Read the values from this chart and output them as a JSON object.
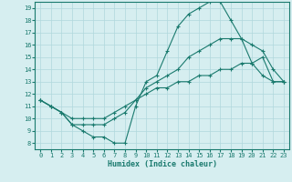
{
  "xlabel": "Humidex (Indice chaleur)",
  "background_color": "#d6eef0",
  "grid_color": "#b0d8dc",
  "line_color": "#1a7a6e",
  "xlim": [
    -0.5,
    23.5
  ],
  "ylim": [
    7.5,
    19.5
  ],
  "xticks": [
    0,
    1,
    2,
    3,
    4,
    5,
    6,
    7,
    8,
    9,
    10,
    11,
    12,
    13,
    14,
    15,
    16,
    17,
    18,
    19,
    20,
    21,
    22,
    23
  ],
  "yticks": [
    8,
    9,
    10,
    11,
    12,
    13,
    14,
    15,
    16,
    17,
    18,
    19
  ],
  "line1_x": [
    0,
    1,
    2,
    3,
    4,
    5,
    6,
    7,
    8,
    9,
    10,
    11,
    12,
    13,
    14,
    15,
    16,
    17,
    18,
    19,
    20,
    21,
    22,
    23
  ],
  "line1_y": [
    11.5,
    11.0,
    10.5,
    9.5,
    9.0,
    8.5,
    8.5,
    8.0,
    8.0,
    11.0,
    13.0,
    13.5,
    15.5,
    17.5,
    18.5,
    19.0,
    19.5,
    19.5,
    18.0,
    16.5,
    14.5,
    13.5,
    13.0,
    13.0
  ],
  "line2_x": [
    0,
    1,
    2,
    3,
    4,
    5,
    6,
    7,
    8,
    9,
    10,
    11,
    12,
    13,
    14,
    15,
    16,
    17,
    18,
    19,
    20,
    21,
    22,
    23
  ],
  "line2_y": [
    11.5,
    11.0,
    10.5,
    9.5,
    9.5,
    9.5,
    9.5,
    10.0,
    10.5,
    11.5,
    12.5,
    13.0,
    13.5,
    14.0,
    15.0,
    15.5,
    16.0,
    16.5,
    16.5,
    16.5,
    16.0,
    15.5,
    14.0,
    13.0
  ],
  "line3_x": [
    0,
    1,
    2,
    3,
    4,
    5,
    6,
    7,
    8,
    9,
    10,
    11,
    12,
    13,
    14,
    15,
    16,
    17,
    18,
    19,
    20,
    21,
    22,
    23
  ],
  "line3_y": [
    11.5,
    11.0,
    10.5,
    10.0,
    10.0,
    10.0,
    10.0,
    10.5,
    11.0,
    11.5,
    12.0,
    12.5,
    12.5,
    13.0,
    13.0,
    13.5,
    13.5,
    14.0,
    14.0,
    14.5,
    14.5,
    15.0,
    13.0,
    13.0
  ]
}
